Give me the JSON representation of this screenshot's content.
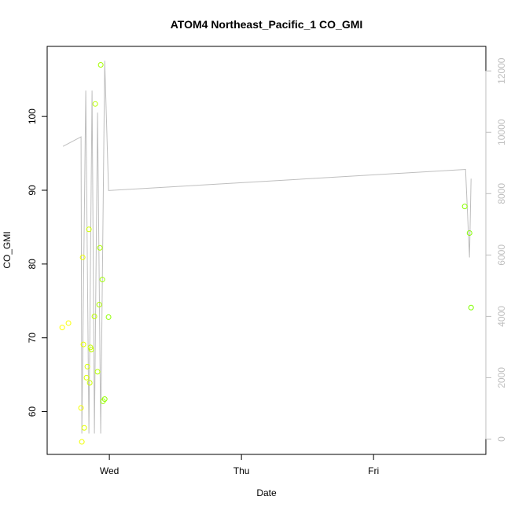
{
  "chart_data": {
    "type": "scatter",
    "title": "ATOM4 Northeast_Pacific_1 CO_GMI",
    "xlabel": "Date",
    "ylabel": "CO_GMI",
    "x_ticks": [
      {
        "label": "Wed",
        "hour": 0
      },
      {
        "label": "Thu",
        "hour": 24
      },
      {
        "label": "Fri",
        "hour": 48
      }
    ],
    "xlim_hours_from_wed": [
      -11.3,
      68.4
    ],
    "ylim": [
      54.2,
      109.5
    ],
    "y_ticks": [
      60,
      70,
      80,
      90,
      100
    ],
    "y2lim": [
      -500,
      12800
    ],
    "y2_ticks": [
      0,
      2000,
      4000,
      6000,
      8000,
      10000,
      12000
    ],
    "grid": false,
    "point_color_start": "#ffff00",
    "point_color_end": "#80ff00",
    "line_color": "#bebebe",
    "points": [
      {
        "t": "Tue 15:26",
        "y": 71.4
      },
      {
        "t": "Tue 16:34",
        "y": 72.0
      },
      {
        "t": "Tue 18:51",
        "y": 60.5
      },
      {
        "t": "Tue 19:00",
        "y": 55.9
      },
      {
        "t": "Tue 19:09",
        "y": 80.9
      },
      {
        "t": "Tue 19:17",
        "y": 69.1
      },
      {
        "t": "Tue 19:26",
        "y": 57.8
      },
      {
        "t": "Tue 19:51",
        "y": 64.6
      },
      {
        "t": "Tue 20:00",
        "y": 66.1
      },
      {
        "t": "Tue 20:17",
        "y": 84.7
      },
      {
        "t": "Tue 20:26",
        "y": 63.9
      },
      {
        "t": "Tue 20:34",
        "y": 68.7
      },
      {
        "t": "Tue 20:43",
        "y": 68.4
      },
      {
        "t": "Tue 21:17",
        "y": 72.9
      },
      {
        "t": "Tue 21:26",
        "y": 101.7
      },
      {
        "t": "Tue 21:51",
        "y": 65.4
      },
      {
        "t": "Tue 22:09",
        "y": 74.5
      },
      {
        "t": "Tue 22:17",
        "y": 82.2
      },
      {
        "t": "Tue 22:26",
        "y": 107.0
      },
      {
        "t": "Tue 22:43",
        "y": 77.9
      },
      {
        "t": "Tue 22:51",
        "y": 61.4
      },
      {
        "t": "Tue 23:09",
        "y": 61.7
      },
      {
        "t": "Tue 23:51",
        "y": 72.8
      },
      {
        "t": "Fri 16:34",
        "y": 87.8
      },
      {
        "t": "Fri 17:26",
        "y": 84.2
      },
      {
        "t": "Fri 17:43",
        "y": 74.1
      }
    ],
    "line_series_right_axis": [
      {
        "t": "Tue 15:34",
        "y": 9540
      },
      {
        "t": "Tue 18:51",
        "y": 9850
      },
      {
        "t": "Tue 19:00",
        "y": 180
      },
      {
        "t": "Tue 19:43",
        "y": 11360
      },
      {
        "t": "Tue 20:17",
        "y": 180
      },
      {
        "t": "Tue 20:51",
        "y": 11360
      },
      {
        "t": "Tue 21:17",
        "y": 180
      },
      {
        "t": "Tue 21:51",
        "y": 10640
      },
      {
        "t": "Tue 22:26",
        "y": 180
      },
      {
        "t": "Tue 23:09",
        "y": 12330
      },
      {
        "t": "Tue 23:51",
        "y": 8100
      },
      {
        "t": "Fri 16:43",
        "y": 8790
      },
      {
        "t": "Fri 17:26",
        "y": 5920
      },
      {
        "t": "Fri 17:43",
        "y": 8490
      }
    ]
  }
}
